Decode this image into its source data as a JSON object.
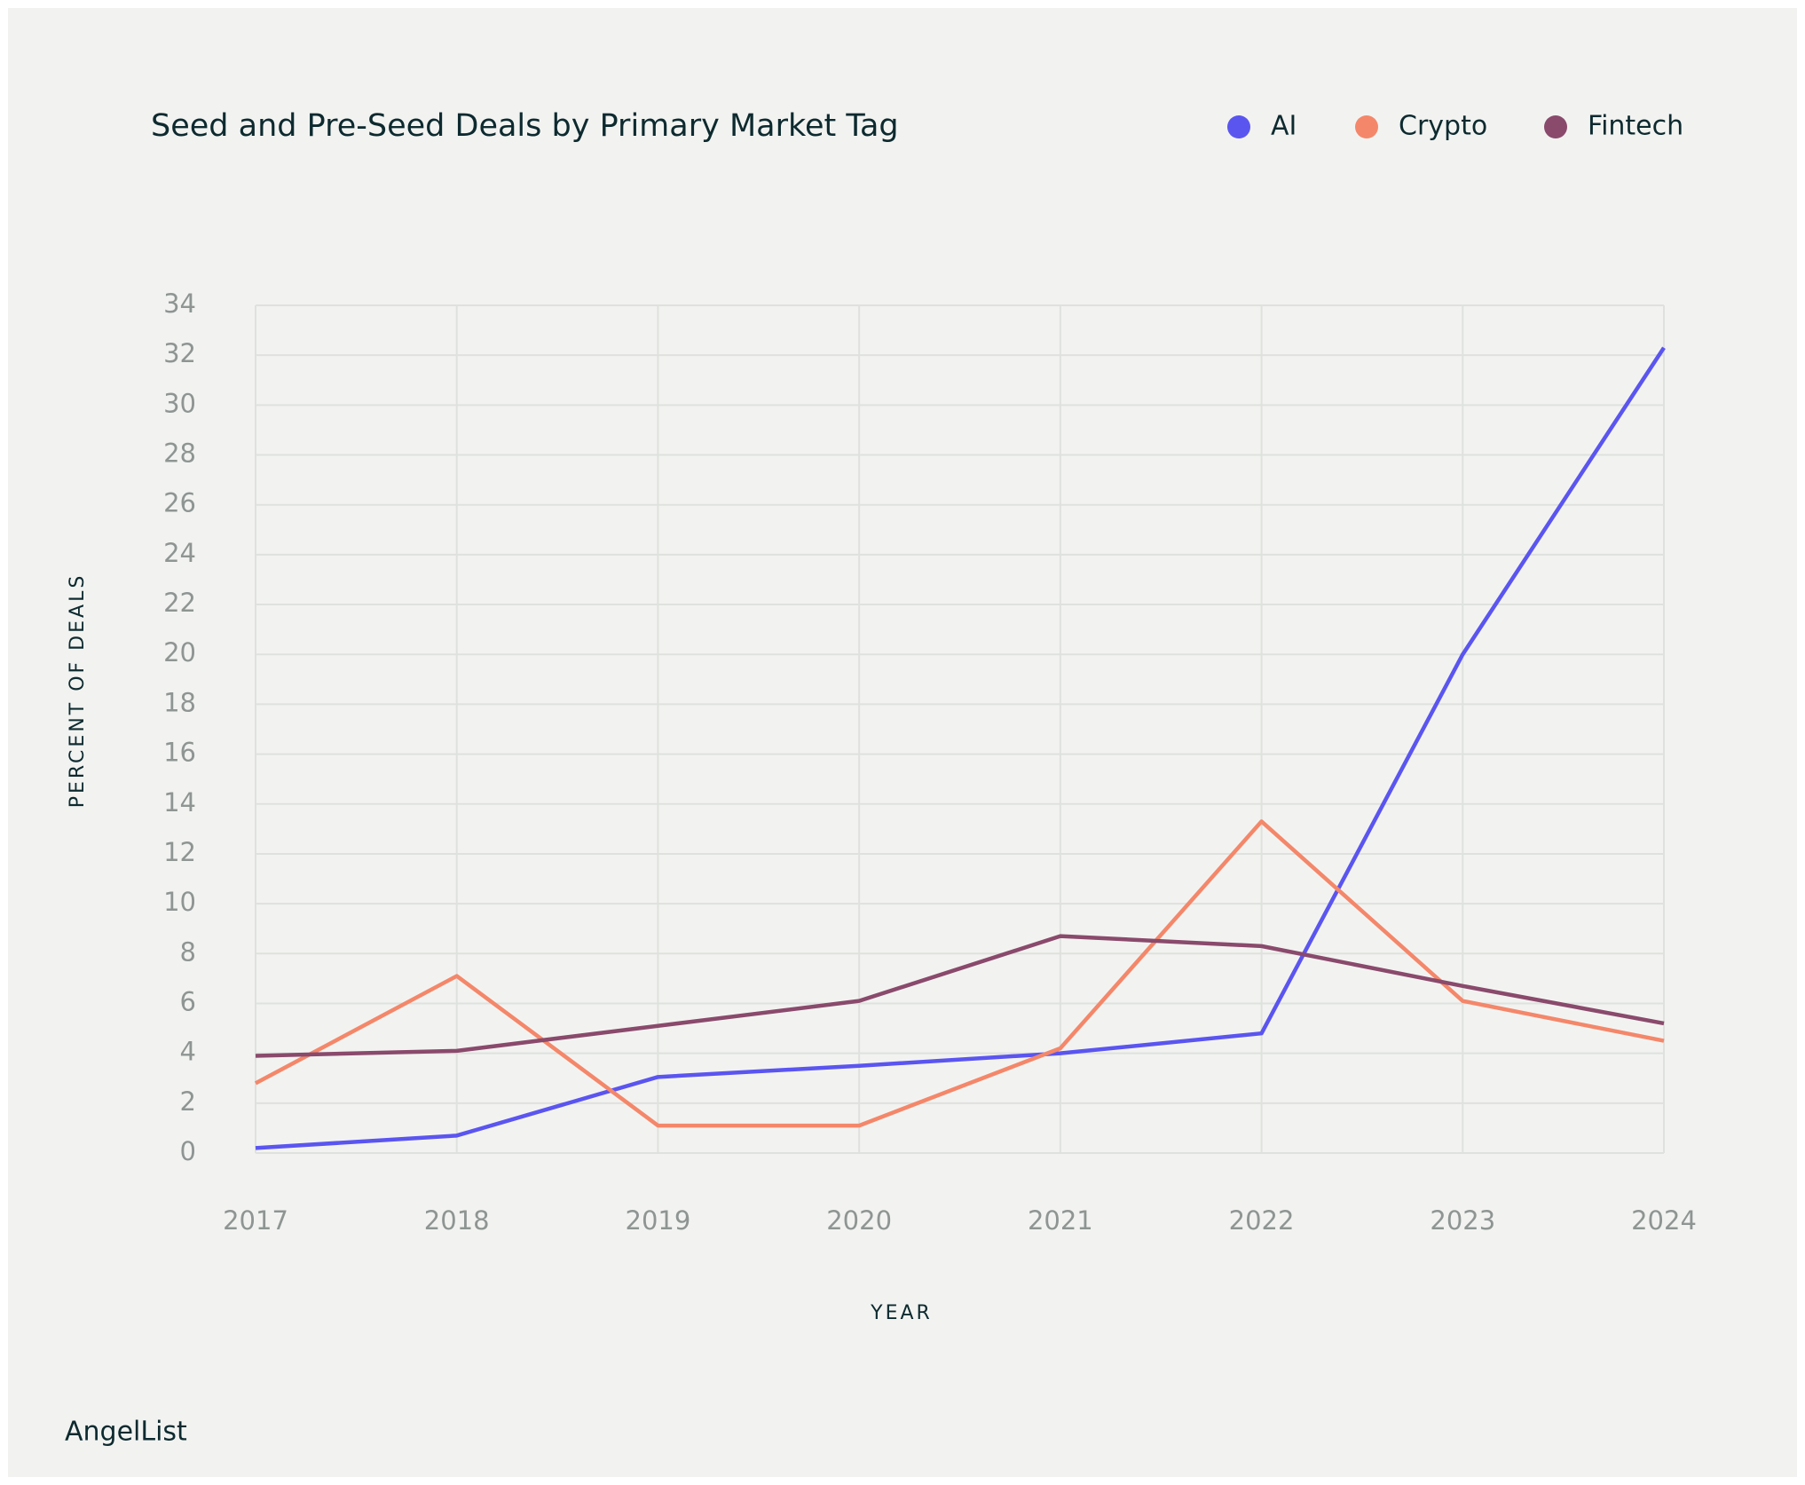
{
  "chart_data": {
    "type": "line",
    "title": "Seed and Pre-Seed Deals by Primary Market Tag",
    "x_label": "YEAR",
    "y_label": "PERCENT OF DEALS",
    "categories": [
      "2017",
      "2018",
      "2019",
      "2020",
      "2021",
      "2022",
      "2023",
      "2024"
    ],
    "series": [
      {
        "name": "AI",
        "color": "#5b55f0",
        "values": [
          0.2,
          0.7,
          3.05,
          3.5,
          4.0,
          4.8,
          20.0,
          32.3
        ]
      },
      {
        "name": "Crypto",
        "color": "#f4876a",
        "values": [
          2.8,
          7.1,
          1.1,
          1.1,
          4.2,
          13.3,
          6.1,
          4.5
        ]
      },
      {
        "name": "Fintech",
        "color": "#8a4a6c",
        "values": [
          3.9,
          4.1,
          5.1,
          6.1,
          8.7,
          8.3,
          6.7,
          5.2
        ]
      }
    ],
    "ylim": [
      0,
      34
    ],
    "yticks": [
      0,
      2,
      4,
      6,
      8,
      10,
      12,
      14,
      16,
      18,
      20,
      22,
      24,
      26,
      28,
      30,
      32,
      34
    ],
    "grid": true,
    "legend": "top-right"
  },
  "footer": {
    "brand": "AngelList"
  }
}
